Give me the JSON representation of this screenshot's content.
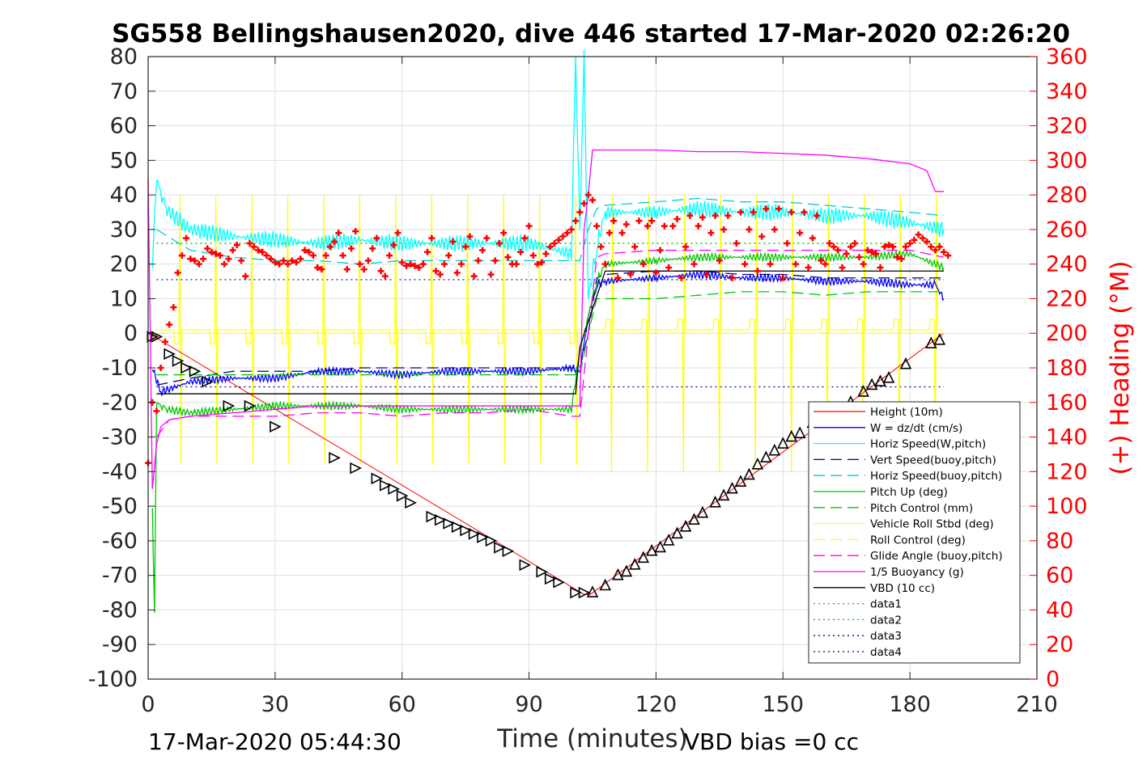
{
  "title": "SG558 Bellingshausen2020, dive 446 started 17-Mar-2020 02:26:20",
  "footer_left": "17-Mar-2020 05:44:30",
  "footer_right": "VBD bias =0 cc",
  "chart_data": {
    "type": "line",
    "title": "SG558 Bellingshausen2020, dive 446 started 17-Mar-2020 02:26:20",
    "xlabel": "Time (minutes)",
    "ylabel": "",
    "ylabel_right": "(+) Heading (°M)",
    "xlim": [
      0,
      210
    ],
    "ylim": [
      -100,
      80
    ],
    "ylim_right": [
      0,
      360
    ],
    "xticks": [
      "0",
      "30",
      "60",
      "90",
      "120",
      "150",
      "180",
      "210"
    ],
    "yticks": [
      "80",
      "70",
      "60",
      "50",
      "40",
      "30",
      "20",
      "10",
      "0",
      "-10",
      "-20",
      "-30",
      "-40",
      "-50",
      "-60",
      "-70",
      "-80",
      "-90",
      "-100"
    ],
    "yticks_right": [
      "360",
      "340",
      "320",
      "300",
      "280",
      "260",
      "240",
      "220",
      "200",
      "180",
      "160",
      "140",
      "120",
      "100",
      "80",
      "60",
      "40",
      "20",
      "0"
    ],
    "grid": true,
    "legend_position": "bottom-right",
    "legend": [
      {
        "name": "Height (10m)",
        "color": "#ff0000",
        "dash": "solid"
      },
      {
        "name": "W = dz/dt (cm/s)",
        "color": "#0000ff",
        "dash": "solid"
      },
      {
        "name": "Horiz Speed(W,pitch)",
        "color": "#00ffff",
        "dash": "solid"
      },
      {
        "name": "Vert Speed(buoy,pitch)",
        "color": "#00008b",
        "dash": "dashed"
      },
      {
        "name": "Horiz Speed(buoy,pitch)",
        "color": "#00ced1",
        "dash": "dashed"
      },
      {
        "name": "Pitch Up (deg)",
        "color": "#00c800",
        "dash": "solid"
      },
      {
        "name": "Pitch Control (mm)",
        "color": "#00c800",
        "dash": "dashed"
      },
      {
        "name": "Vehicle Roll Stbd (deg)",
        "color": "#ffff00",
        "dash": "solid"
      },
      {
        "name": "Roll Control (deg)",
        "color": "#ffff00",
        "dash": "dashed"
      },
      {
        "name": "Glide Angle (buoy,pitch)",
        "color": "#ff00ff",
        "dash": "dashed"
      },
      {
        "name": "1/5 Buoyancy (g)",
        "color": "#ff00ff",
        "dash": "solid"
      },
      {
        "name": "VBD (10 cc)",
        "color": "#000000",
        "dash": "solid"
      },
      {
        "name": "data1",
        "color": "#00c800",
        "dash": "dotted"
      },
      {
        "name": "data2",
        "color": "#00c800",
        "dash": "dotted"
      },
      {
        "name": "data3",
        "color": "#00008b",
        "dash": "dotted"
      },
      {
        "name": "data4",
        "color": "#00008b",
        "dash": "dotted"
      }
    ],
    "series": [
      {
        "name": "Height (10m)",
        "color": "#ff0000",
        "x": [
          0,
          1.5,
          103,
          104.5,
          188
        ],
        "y": [
          0,
          -1,
          -75.5,
          -75.5,
          0
        ]
      },
      {
        "name": "W = dz/dt (cm/s)",
        "color": "#0000ff",
        "x": [
          1,
          3,
          10,
          20,
          30,
          40,
          50,
          60,
          70,
          80,
          90,
          100,
          102,
          104,
          106,
          108,
          120,
          130,
          140,
          150,
          160,
          170,
          180,
          186,
          188
        ],
        "y": [
          -10,
          -17,
          -14,
          -13,
          -13,
          -11,
          -11,
          -12,
          -11,
          -11,
          -11,
          -10,
          -11,
          5,
          14,
          15,
          16,
          17,
          16,
          16,
          15,
          15,
          14,
          14,
          10
        ]
      },
      {
        "name": "Horiz Speed(W,pitch)",
        "color": "#00ffff",
        "x": [
          1,
          2,
          4,
          10,
          20,
          30,
          40,
          50,
          60,
          70,
          80,
          90,
          100,
          101,
          102,
          103,
          104,
          106,
          108,
          120,
          130,
          140,
          150,
          160,
          170,
          180,
          188
        ],
        "y": [
          20,
          45,
          36,
          30,
          28,
          27,
          26,
          27,
          26,
          26,
          26,
          26,
          23,
          80,
          30,
          80,
          10,
          25,
          35,
          35,
          36,
          35,
          35,
          34,
          34,
          32,
          30
        ]
      },
      {
        "name": "Vert Speed(buoy,pitch)",
        "color": "#00008b",
        "x": [
          2,
          10,
          20,
          30,
          40,
          50,
          60,
          70,
          80,
          90,
          100,
          102,
          104,
          106,
          108,
          120,
          130,
          140,
          150,
          160,
          170,
          180,
          188
        ],
        "y": [
          -15,
          -13,
          -11,
          -11,
          -11,
          -10,
          -10,
          -10,
          -10,
          -10,
          -10,
          -10,
          0,
          16,
          17,
          18,
          18,
          17,
          17,
          16,
          16,
          16,
          16
        ]
      },
      {
        "name": "Horiz Speed(buoy,pitch)",
        "color": "#00ced1",
        "x": [
          2,
          10,
          20,
          30,
          40,
          50,
          60,
          70,
          80,
          90,
          100,
          102,
          104,
          106,
          108,
          120,
          130,
          140,
          150,
          160,
          170,
          180,
          188
        ],
        "y": [
          30,
          24,
          22,
          21,
          21,
          20,
          21,
          21,
          21,
          21,
          21,
          21,
          30,
          36,
          37,
          38,
          39,
          38,
          38,
          37,
          36,
          35,
          34
        ]
      },
      {
        "name": "Pitch Up (deg)",
        "color": "#00c800",
        "x": [
          1,
          1.5,
          2,
          4,
          10,
          20,
          30,
          40,
          50,
          60,
          70,
          80,
          90,
          100,
          102,
          104,
          106,
          108,
          120,
          130,
          140,
          150,
          160,
          170,
          180,
          188
        ],
        "y": [
          -50,
          -82,
          -20,
          -22,
          -23,
          -22,
          -21,
          -21,
          -21,
          -22,
          -22,
          -22,
          -22,
          -22,
          -5,
          5,
          15,
          20,
          21,
          22,
          22,
          22,
          22,
          22,
          23,
          19
        ]
      },
      {
        "name": "Pitch Control (mm)",
        "color": "#00c800",
        "x": [
          2,
          10,
          20,
          30,
          40,
          50,
          60,
          70,
          80,
          90,
          100,
          102,
          104,
          106,
          108,
          120,
          130,
          140,
          150,
          160,
          170,
          180,
          188
        ],
        "y": [
          -12,
          -12,
          -12,
          -12,
          -12,
          -12,
          -12,
          -12,
          -12,
          -12,
          -12,
          -12,
          0,
          10,
          10,
          10,
          11,
          12,
          12,
          11,
          12,
          12,
          12
        ]
      },
      {
        "name": "Vehicle Roll Stbd (deg)",
        "color": "#ffff00",
        "x": [
          0,
          2,
          10,
          20,
          30,
          40,
          50,
          60,
          70,
          80,
          90,
          100,
          102,
          104,
          106,
          108,
          120,
          130,
          140,
          150,
          160,
          170,
          180,
          188
        ],
        "y": [
          10,
          1,
          1,
          1,
          1,
          1,
          1,
          1,
          1,
          1,
          1,
          1,
          1,
          0,
          1,
          1,
          1,
          1,
          1,
          1,
          1,
          1,
          1,
          1
        ]
      },
      {
        "name": "Roll Control (deg)",
        "color": "#ffff00",
        "x": [
          2,
          100,
          104,
          188
        ],
        "y": [
          0,
          0,
          0,
          0
        ]
      },
      {
        "name": "Glide Angle (buoy,pitch)",
        "color": "#ff00ff",
        "x": [
          2,
          5,
          10,
          20,
          30,
          40,
          50,
          60,
          70,
          80,
          90,
          100,
          102,
          104,
          106,
          108,
          120,
          130,
          140,
          150,
          160,
          170,
          180,
          188
        ],
        "y": [
          -30,
          -25,
          -24,
          -24,
          -24,
          -23,
          -23,
          -24,
          -23,
          -23,
          -22,
          -24,
          -24,
          0,
          22,
          23,
          24,
          24,
          24,
          24,
          24,
          24,
          24,
          22
        ]
      },
      {
        "name": "1/5 Buoyancy (g)",
        "color": "#ff00ff",
        "x": [
          0,
          1,
          2,
          3,
          5,
          10,
          20,
          30,
          40,
          50,
          60,
          70,
          80,
          90,
          100,
          102,
          103,
          104,
          105,
          106,
          108,
          120,
          130,
          140,
          150,
          160,
          170,
          180,
          184,
          186,
          188
        ],
        "y": [
          45,
          -45,
          -32,
          -27,
          -25,
          -24,
          -23,
          -22,
          -21,
          -21,
          -21,
          -21,
          -21,
          -21,
          -21,
          -21,
          30,
          40,
          53,
          53,
          53,
          53,
          52.5,
          52.5,
          52,
          51.5,
          50.5,
          49,
          47,
          41,
          41
        ]
      },
      {
        "name": "VBD (10 cc)",
        "color": "#000000",
        "x": [
          2,
          101,
          102,
          108,
          188
        ],
        "y": [
          -17.5,
          -17.5,
          -4,
          18,
          18
        ]
      },
      {
        "name": "data1",
        "color": "#00c800",
        "x": [
          2,
          188
        ],
        "y": [
          26,
          26
        ]
      },
      {
        "name": "data2",
        "color": "#00c800",
        "x": [
          2,
          188
        ],
        "y": [
          26,
          26
        ]
      },
      {
        "name": "data3",
        "color": "#00008b",
        "x": [
          2,
          188
        ],
        "y": [
          15.5,
          15.5
        ]
      },
      {
        "name": "data4",
        "color": "#00008b",
        "x": [
          2,
          188
        ],
        "y": [
          -15.5,
          -15.5
        ]
      }
    ],
    "heading": {
      "name": "(+) Heading (°M)",
      "color": "#ff0000",
      "axis": "right",
      "x": [
        0,
        1,
        2,
        3,
        4,
        5,
        6,
        7,
        8,
        9,
        10,
        11,
        12,
        13,
        14,
        15,
        16,
        17,
        18,
        19,
        20,
        21,
        22,
        23,
        24,
        25,
        26,
        27,
        28,
        29,
        30,
        31,
        32,
        33,
        34,
        35,
        36,
        37,
        38,
        39,
        40,
        41,
        42,
        43,
        44,
        45,
        46,
        47,
        48,
        49,
        50,
        51,
        52,
        53,
        54,
        55,
        56,
        57,
        58,
        59,
        60,
        61,
        62,
        63,
        64,
        65,
        66,
        67,
        68,
        69,
        70,
        71,
        72,
        73,
        74,
        75,
        76,
        77,
        78,
        79,
        80,
        81,
        82,
        83,
        84,
        85,
        86,
        87,
        88,
        89,
        90,
        91,
        92,
        93,
        94,
        95,
        96,
        97,
        98,
        99,
        100,
        101,
        102,
        103,
        104,
        105,
        106,
        107,
        108,
        109,
        110,
        111,
        112,
        113,
        114,
        115,
        116,
        117,
        118,
        119,
        120,
        121,
        122,
        123,
        124,
        125,
        126,
        127,
        128,
        129,
        130,
        131,
        132,
        133,
        134,
        135,
        136,
        137,
        138,
        139,
        140,
        141,
        142,
        143,
        144,
        145,
        146,
        147,
        148,
        149,
        150,
        151,
        152,
        153,
        154,
        155,
        156,
        157,
        158,
        159,
        160,
        161,
        162,
        163,
        164,
        165,
        166,
        167,
        168,
        169,
        170,
        171,
        172,
        173,
        174,
        175,
        176,
        177,
        178,
        179,
        180,
        181,
        182,
        183,
        184,
        185,
        186,
        187,
        188,
        189
      ],
      "y": [
        125,
        160,
        155,
        180,
        195,
        205,
        215,
        235,
        245,
        255,
        243,
        242,
        240,
        243,
        249,
        247,
        246,
        245,
        240,
        243,
        248,
        251,
        242,
        233,
        252,
        250,
        248,
        247,
        245,
        243,
        241,
        240,
        242,
        240,
        242,
        241,
        243,
        248,
        247,
        245,
        238,
        237,
        245,
        250,
        253,
        258,
        245,
        237,
        249,
        259,
        240,
        237,
        242,
        249,
        255,
        236,
        233,
        245,
        251,
        258,
        241,
        239,
        240,
        239,
        238,
        240,
        247,
        255,
        236,
        234,
        240,
        245,
        253,
        235,
        240,
        250,
        256,
        233,
        242,
        248,
        255,
        234,
        242,
        252,
        258,
        244,
        240,
        240,
        247,
        255,
        262,
        245,
        240,
        241,
        246,
        250,
        252,
        254,
        256,
        258,
        260,
        265,
        270,
        275,
        280,
        277,
        262,
        250,
        240,
        258,
        265,
        232,
        258,
        263,
        234,
        250,
        265,
        240,
        262,
        265,
        235,
        248,
        262,
        238,
        262,
        266,
        232,
        250,
        268,
        240,
        262,
        267,
        234,
        258,
        268,
        242,
        260,
        268,
        232,
        252,
        270,
        240,
        260,
        270,
        236,
        256,
        272,
        240,
        260,
        272,
        232,
        252,
        270,
        240,
        258,
        270,
        238,
        255,
        268,
        242,
        240,
        252,
        250,
        248,
        238,
        246,
        250,
        252,
        244,
        240,
        248,
        247,
        246,
        238,
        250,
        251,
        250,
        244,
        243,
        250,
        252,
        254,
        257,
        255,
        253,
        250,
        248,
        250,
        247,
        245
      ]
    },
    "markers": {
      "name": "Height samples",
      "color": "#000000",
      "x": [
        1,
        2,
        5,
        7,
        9,
        11,
        14,
        19,
        24,
        30,
        44,
        49,
        54,
        56,
        58,
        60,
        62,
        67,
        69,
        71,
        73,
        75,
        77,
        79,
        81,
        83,
        85,
        89,
        93,
        95,
        97,
        101,
        103,
        105,
        108,
        111,
        113,
        115,
        117,
        119,
        121,
        123,
        125,
        127,
        129,
        131,
        134,
        136,
        138,
        140,
        142,
        144,
        146,
        148,
        150,
        152,
        154,
        157,
        160,
        163,
        166,
        169,
        171,
        173,
        175,
        179,
        185,
        187
      ],
      "y": [
        -1,
        -1,
        -6,
        -8,
        -10,
        -11,
        -14,
        -21,
        -21,
        -27,
        -36,
        -39,
        -42,
        -44,
        -45,
        -47,
        -49,
        -53,
        -54,
        -55,
        -56,
        -57,
        -58,
        -59,
        -60,
        -62,
        -63,
        -67,
        -69,
        -71,
        -72,
        -75,
        -75,
        -75,
        -73,
        -70,
        -69,
        -67,
        -65,
        -63,
        -62,
        -60,
        -58,
        -56,
        -54,
        -52,
        -49,
        -47,
        -45,
        -43,
        -41,
        -38,
        -36,
        -34,
        -32,
        -30,
        -29,
        -26,
        -24,
        -22,
        -20,
        -17,
        -15,
        -14,
        -13,
        -9,
        -3,
        -2
      ]
    }
  }
}
